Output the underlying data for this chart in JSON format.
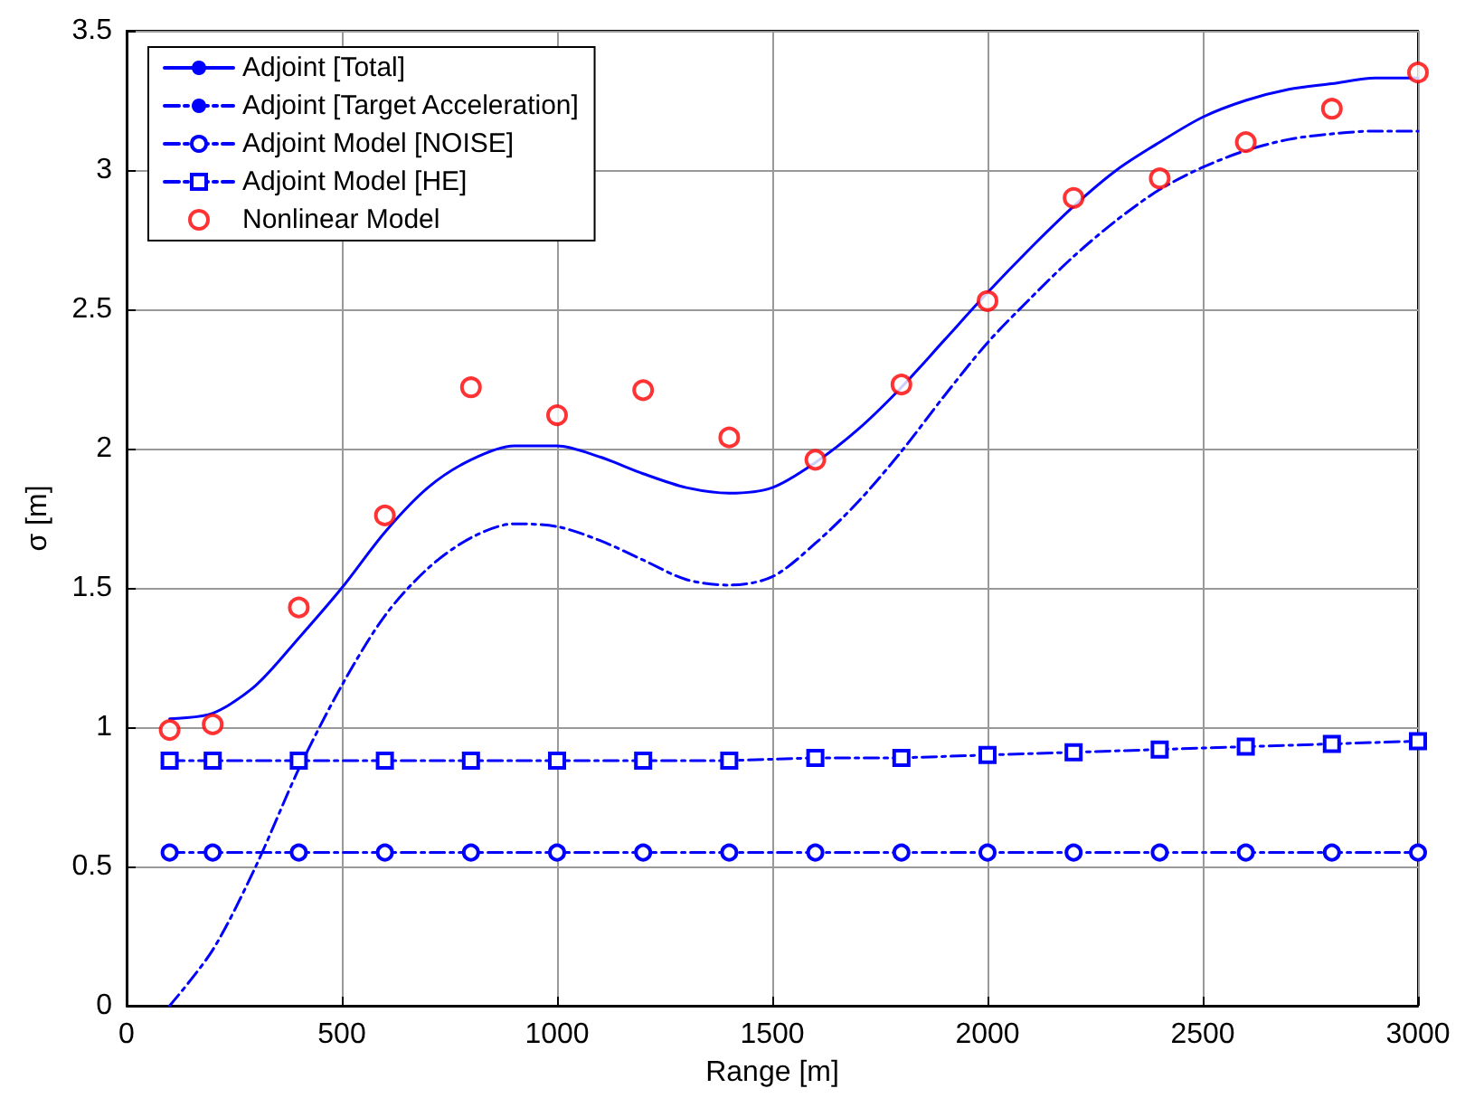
{
  "chart_data": {
    "type": "line",
    "xlabel": "Range [m]",
    "ylabel": "σ [m]",
    "xlim": [
      0,
      3000
    ],
    "xticks": [
      0,
      500,
      1000,
      1500,
      2000,
      2500,
      3000
    ],
    "ylim": [
      0,
      3.5
    ],
    "yticks": [
      0,
      0.5,
      1,
      1.5,
      2,
      2.5,
      3,
      3.5
    ],
    "grid": true,
    "legend": "top left",
    "series": [
      {
        "name": "Adjoint [Total]",
        "type": "line",
        "color": "#0000ff",
        "marker": "none",
        "line_style": "solid",
        "x": [
          100,
          200,
          300,
          400,
          500,
          600,
          700,
          800,
          900,
          1000,
          1100,
          1200,
          1300,
          1400,
          1500,
          1600,
          1700,
          1800,
          1900,
          2000,
          2100,
          2200,
          2300,
          2400,
          2500,
          2600,
          2700,
          2800,
          2900,
          3000
        ],
        "values": [
          1.03,
          1.05,
          1.15,
          1.32,
          1.5,
          1.7,
          1.86,
          1.96,
          2.01,
          2.01,
          1.97,
          1.91,
          1.86,
          1.84,
          1.86,
          1.95,
          2.07,
          2.22,
          2.39,
          2.56,
          2.72,
          2.87,
          3.0,
          3.1,
          3.19,
          3.25,
          3.29,
          3.31,
          3.33,
          3.33
        ]
      },
      {
        "name": "Adjoint [Target Acceleration]",
        "type": "line",
        "color": "#0000ff",
        "marker": "none",
        "line_style": "dashed",
        "x": [
          100,
          200,
          300,
          400,
          500,
          600,
          700,
          800,
          900,
          1000,
          1100,
          1200,
          1300,
          1400,
          1500,
          1600,
          1700,
          1800,
          1900,
          2000,
          2100,
          2200,
          2300,
          2400,
          2500,
          2600,
          2700,
          2800,
          2900,
          3000
        ],
        "values": [
          0.0,
          0.2,
          0.5,
          0.85,
          1.15,
          1.4,
          1.57,
          1.68,
          1.73,
          1.72,
          1.67,
          1.6,
          1.53,
          1.51,
          1.54,
          1.66,
          1.81,
          1.99,
          2.19,
          2.38,
          2.54,
          2.69,
          2.82,
          2.93,
          3.01,
          3.07,
          3.11,
          3.13,
          3.14,
          3.14
        ]
      },
      {
        "name": "Adjoint Model [NOISE]",
        "type": "line",
        "color": "#0000ff",
        "marker": "circle",
        "line_style": "dashed",
        "x": [
          100,
          200,
          400,
          600,
          800,
          1000,
          1200,
          1400,
          1600,
          1800,
          2000,
          2200,
          2400,
          2600,
          2800,
          3000
        ],
        "values": [
          0.55,
          0.55,
          0.55,
          0.55,
          0.55,
          0.55,
          0.55,
          0.55,
          0.55,
          0.55,
          0.55,
          0.55,
          0.55,
          0.55,
          0.55,
          0.55
        ]
      },
      {
        "name": "Adjoint Model [HE]",
        "type": "line",
        "color": "#0000ff",
        "marker": "square",
        "line_style": "dashed",
        "x": [
          100,
          200,
          400,
          600,
          800,
          1000,
          1200,
          1400,
          1600,
          1800,
          2000,
          2200,
          2400,
          2600,
          2800,
          3000
        ],
        "values": [
          0.88,
          0.88,
          0.88,
          0.88,
          0.88,
          0.88,
          0.88,
          0.88,
          0.89,
          0.89,
          0.9,
          0.91,
          0.92,
          0.93,
          0.94,
          0.95
        ]
      },
      {
        "name": "Nonlinear Model",
        "type": "scatter",
        "color": "#ff0000",
        "marker": "circle",
        "x": [
          100,
          200,
          400,
          600,
          800,
          1000,
          1200,
          1400,
          1600,
          1800,
          2000,
          2200,
          2400,
          2600,
          2800,
          3000
        ],
        "values": [
          0.99,
          1.01,
          1.43,
          1.76,
          2.22,
          2.12,
          2.21,
          2.04,
          1.96,
          2.23,
          2.53,
          2.9,
          2.97,
          3.1,
          3.22,
          3.35
        ]
      }
    ]
  }
}
